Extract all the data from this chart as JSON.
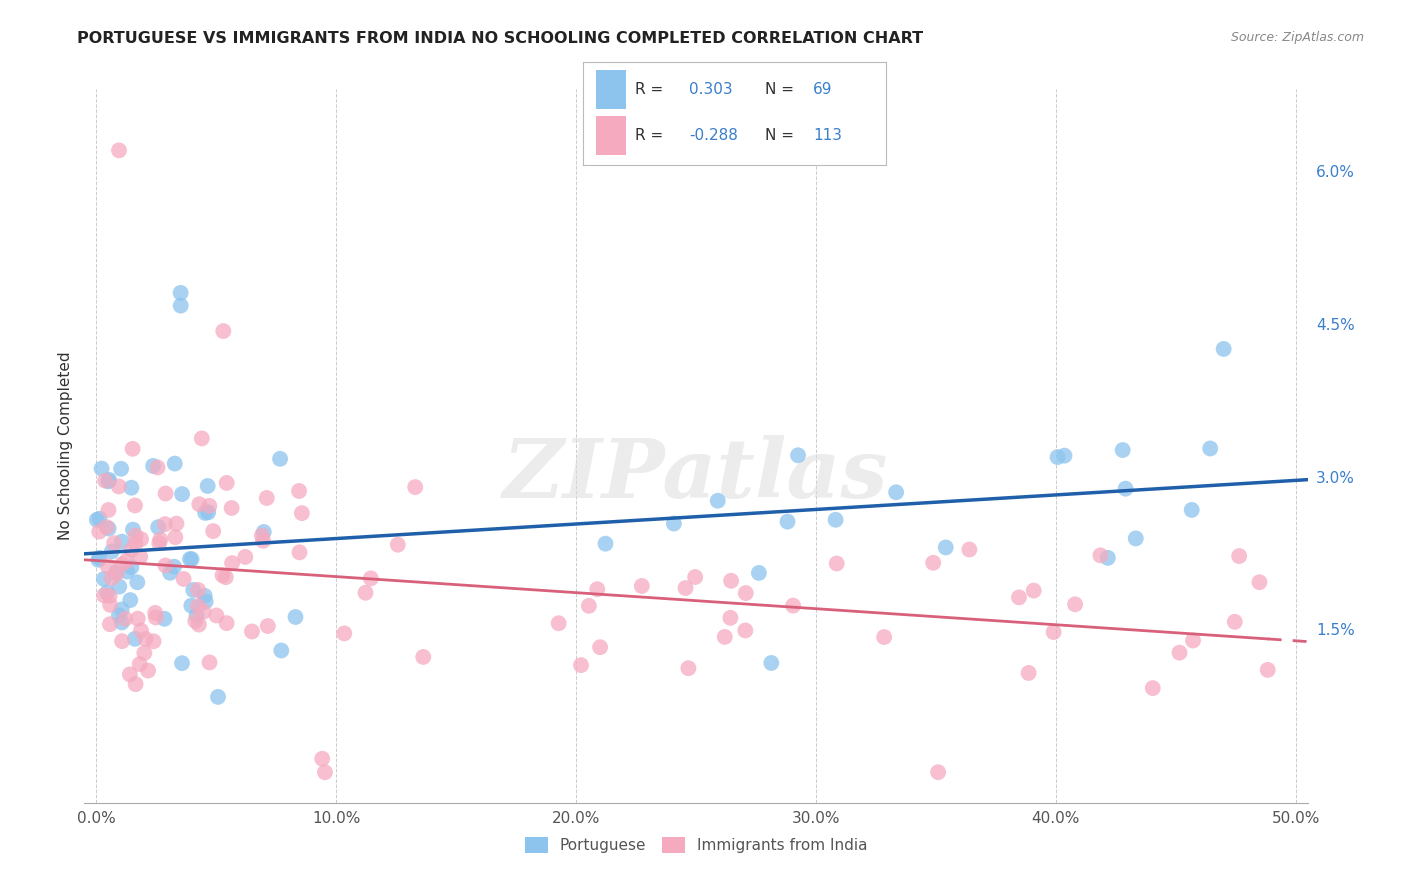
{
  "title": "PORTUGUESE VS IMMIGRANTS FROM INDIA NO SCHOOLING COMPLETED CORRELATION CHART",
  "source": "Source: ZipAtlas.com",
  "ylabel": "No Schooling Completed",
  "xlim": [
    -0.005,
    0.505
  ],
  "ylim": [
    -0.002,
    0.068
  ],
  "xtick_vals": [
    0.0,
    0.1,
    0.2,
    0.3,
    0.4,
    0.5
  ],
  "ytick_vals": [
    0.015,
    0.03,
    0.045,
    0.06
  ],
  "blue_color": "#8CC4EE",
  "pink_color": "#F5AABF",
  "blue_line_color": "#2060AA",
  "pink_line_color": "#D9607A",
  "legend_r_blue": "0.303",
  "legend_n_blue": "69",
  "legend_r_pink": "-0.288",
  "legend_n_pink": "113",
  "legend_label_blue": "Portuguese",
  "legend_label_pink": "Immigrants from India",
  "watermark": "ZIPatlas",
  "blue_intercept": 0.022,
  "blue_slope": 0.018,
  "pink_intercept": 0.022,
  "pink_slope": -0.016
}
